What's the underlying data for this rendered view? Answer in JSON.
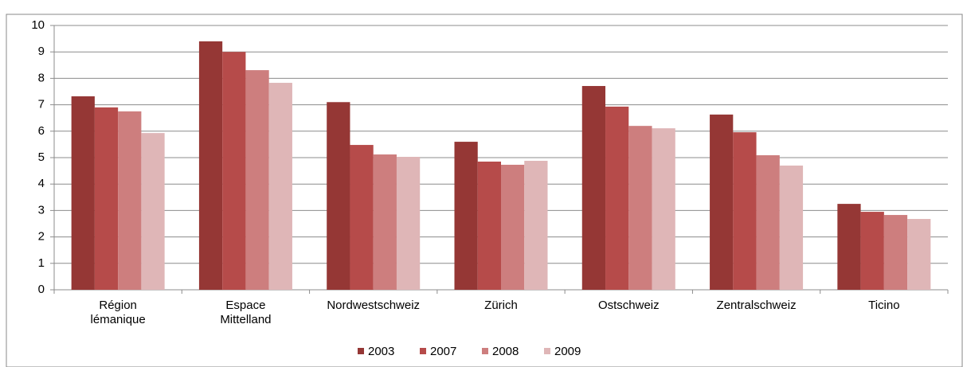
{
  "chart_data": {
    "type": "bar",
    "categories": [
      "Région\nlémanique",
      "Espace\nMittelland",
      "Nordwestschweiz",
      "Zürich",
      "Ostschweiz",
      "Zentralschweiz",
      "Ticino"
    ],
    "series": [
      {
        "name": "2003",
        "color": "#953735",
        "values": [
          7.32,
          9.4,
          7.1,
          5.6,
          7.71,
          6.63,
          3.25
        ]
      },
      {
        "name": "2007",
        "color": "#b64b4a",
        "values": [
          6.9,
          9.0,
          5.48,
          4.85,
          6.93,
          5.96,
          2.95
        ]
      },
      {
        "name": "2008",
        "color": "#cd7e7e",
        "values": [
          6.75,
          8.31,
          5.12,
          4.73,
          6.2,
          5.09,
          2.83
        ]
      },
      {
        "name": "2009",
        "color": "#dfb6b7",
        "values": [
          5.93,
          7.83,
          5.03,
          4.88,
          6.11,
          4.7,
          2.68
        ]
      }
    ],
    "ylim": [
      0,
      10
    ],
    "yticks": [
      0,
      1,
      2,
      3,
      4,
      5,
      6,
      7,
      8,
      9,
      10
    ],
    "grid": true,
    "legend": "bottom"
  }
}
